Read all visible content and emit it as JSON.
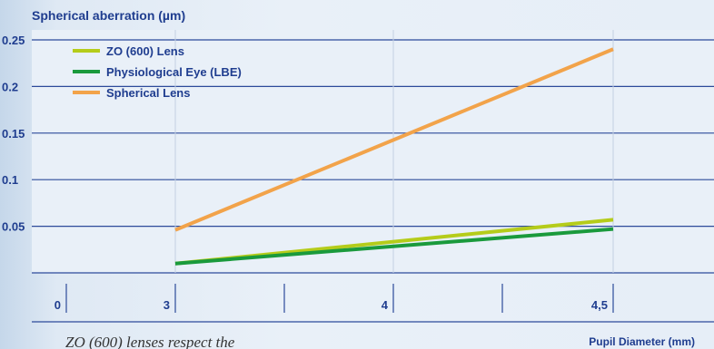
{
  "chart_data": {
    "type": "line",
    "ylabel": "Spherical aberration (µm)",
    "xlabel": "Pupil Diameter (mm)",
    "categories": [
      "0",
      "3",
      "4",
      "4,5"
    ],
    "ylim": [
      0,
      0.25
    ],
    "yticks": [
      "0.25",
      "0.2",
      "0.15",
      "0.1",
      "0.05"
    ],
    "grid": true,
    "legend_position": "top-left",
    "series": [
      {
        "name": "ZO (600) Lens",
        "color": "#b5cc1a",
        "points": [
          [
            "3",
            0.01
          ],
          [
            "4,5",
            0.057
          ]
        ]
      },
      {
        "name": "Physiological Eye (LBE)",
        "color": "#1a9a3c",
        "points": [
          [
            "3",
            0.01
          ],
          [
            "4,5",
            0.047
          ]
        ]
      },
      {
        "name": "Spherical Lens",
        "color": "#f2a34a",
        "points": [
          [
            "3",
            0.046
          ],
          [
            "4,5",
            0.24
          ]
        ]
      }
    ]
  },
  "caption_text": "ZO (600) lenses respect the"
}
